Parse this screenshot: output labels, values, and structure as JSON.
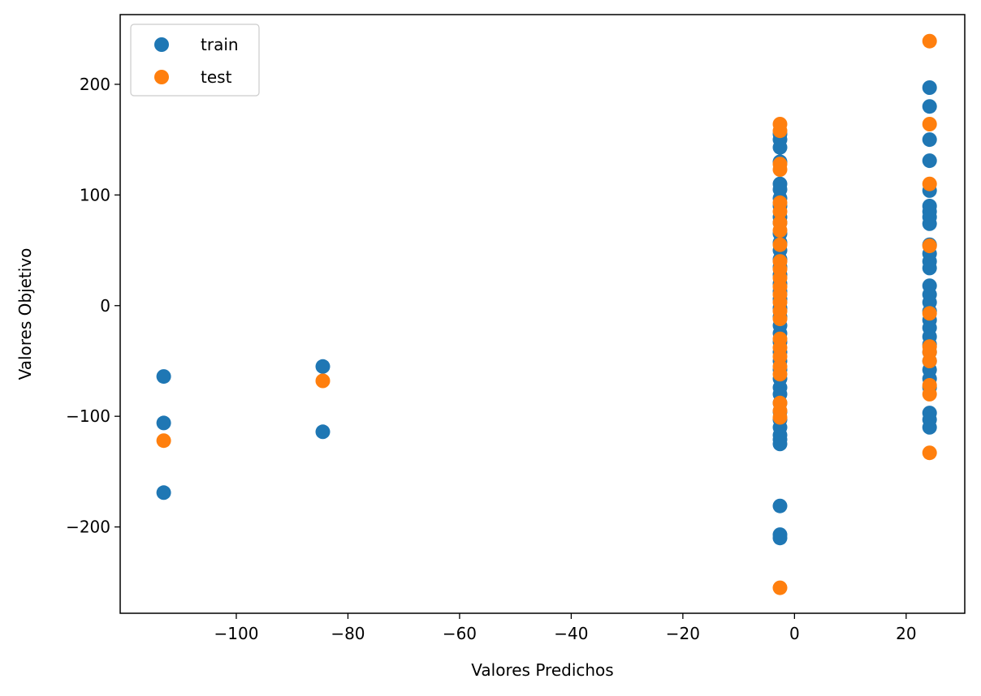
{
  "chart_data": {
    "type": "scatter",
    "title": "",
    "xlabel": "Valores Predichos",
    "ylabel": "Valores Objetivo",
    "xlim": [
      -120.8,
      30.5
    ],
    "ylim": [
      -278,
      263
    ],
    "xticks": [
      -100,
      -80,
      -60,
      -40,
      -20,
      0,
      20
    ],
    "xtick_labels": [
      "−100",
      "−80",
      "−60",
      "−40",
      "−20",
      "0",
      "20"
    ],
    "yticks": [
      -200,
      -100,
      0,
      100,
      200
    ],
    "ytick_labels": [
      "−200",
      "−100",
      "0",
      "100",
      "200"
    ],
    "grid": false,
    "legend_position": "top-left",
    "series": [
      {
        "name": "train",
        "color": "#1f77b4",
        "points": [
          [
            -113,
            -64
          ],
          [
            -113,
            -106
          ],
          [
            -113,
            -169
          ],
          [
            -84.5,
            -55
          ],
          [
            -84.5,
            -114
          ],
          [
            -2.6,
            155
          ],
          [
            -2.6,
            150
          ],
          [
            -2.6,
            143
          ],
          [
            -2.6,
            130
          ],
          [
            -2.6,
            110
          ],
          [
            -2.6,
            105
          ],
          [
            -2.6,
            97
          ],
          [
            -2.6,
            90
          ],
          [
            -2.6,
            80
          ],
          [
            -2.6,
            75
          ],
          [
            -2.6,
            65
          ],
          [
            -2.6,
            57
          ],
          [
            -2.6,
            50
          ],
          [
            -2.6,
            42
          ],
          [
            -2.6,
            35
          ],
          [
            -2.6,
            28
          ],
          [
            -2.6,
            20
          ],
          [
            -2.6,
            13
          ],
          [
            -2.6,
            6
          ],
          [
            -2.6,
            -2
          ],
          [
            -2.6,
            -10
          ],
          [
            -2.6,
            -18
          ],
          [
            -2.6,
            -25
          ],
          [
            -2.6,
            -33
          ],
          [
            -2.6,
            -42
          ],
          [
            -2.6,
            -50
          ],
          [
            -2.6,
            -58
          ],
          [
            -2.6,
            -66
          ],
          [
            -2.6,
            -74
          ],
          [
            -2.6,
            -80
          ],
          [
            -2.6,
            -88
          ],
          [
            -2.6,
            -96
          ],
          [
            -2.6,
            -103
          ],
          [
            -2.6,
            -110
          ],
          [
            -2.6,
            -117
          ],
          [
            -2.6,
            -121
          ],
          [
            -2.6,
            -125
          ],
          [
            -2.6,
            -181
          ],
          [
            -2.6,
            -207
          ],
          [
            -2.6,
            -210
          ],
          [
            24.2,
            197
          ],
          [
            24.2,
            180
          ],
          [
            24.2,
            150
          ],
          [
            24.2,
            131
          ],
          [
            24.2,
            104
          ],
          [
            24.2,
            90
          ],
          [
            24.2,
            85
          ],
          [
            24.2,
            80
          ],
          [
            24.2,
            74
          ],
          [
            24.2,
            55
          ],
          [
            24.2,
            47
          ],
          [
            24.2,
            40
          ],
          [
            24.2,
            34
          ],
          [
            24.2,
            18
          ],
          [
            24.2,
            10
          ],
          [
            24.2,
            3
          ],
          [
            24.2,
            -5
          ],
          [
            24.2,
            -13
          ],
          [
            24.2,
            -20
          ],
          [
            24.2,
            -28
          ],
          [
            24.2,
            -35
          ],
          [
            24.2,
            -42
          ],
          [
            24.2,
            -50
          ],
          [
            24.2,
            -58
          ],
          [
            24.2,
            -66
          ],
          [
            24.2,
            -74
          ],
          [
            24.2,
            -97
          ],
          [
            24.2,
            -103
          ],
          [
            24.2,
            -110
          ]
        ]
      },
      {
        "name": "test",
        "color": "#ff7f0e",
        "points": [
          [
            -113,
            -122
          ],
          [
            -84.5,
            -68
          ],
          [
            -2.6,
            164
          ],
          [
            -2.6,
            158
          ],
          [
            -2.6,
            128
          ],
          [
            -2.6,
            123
          ],
          [
            -2.6,
            93
          ],
          [
            -2.6,
            85
          ],
          [
            -2.6,
            75
          ],
          [
            -2.6,
            68
          ],
          [
            -2.6,
            55
          ],
          [
            -2.6,
            40
          ],
          [
            -2.6,
            33
          ],
          [
            -2.6,
            25
          ],
          [
            -2.6,
            17
          ],
          [
            -2.6,
            10
          ],
          [
            -2.6,
            3
          ],
          [
            -2.6,
            -5
          ],
          [
            -2.6,
            -12
          ],
          [
            -2.6,
            -30
          ],
          [
            -2.6,
            -38
          ],
          [
            -2.6,
            -46
          ],
          [
            -2.6,
            -55
          ],
          [
            -2.6,
            -62
          ],
          [
            -2.6,
            -88
          ],
          [
            -2.6,
            -95
          ],
          [
            -2.6,
            -101
          ],
          [
            -2.6,
            -255
          ],
          [
            24.2,
            239
          ],
          [
            24.2,
            164
          ],
          [
            24.2,
            110
          ],
          [
            24.2,
            54
          ],
          [
            24.2,
            -7
          ],
          [
            24.2,
            -37
          ],
          [
            24.2,
            -42
          ],
          [
            24.2,
            -50
          ],
          [
            24.2,
            -72
          ],
          [
            24.2,
            -80
          ],
          [
            24.2,
            -133
          ]
        ]
      }
    ]
  }
}
